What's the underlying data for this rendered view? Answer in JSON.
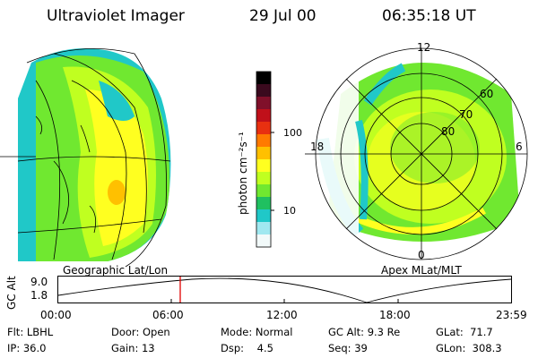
{
  "header": {
    "instrument": "Ultraviolet Imager",
    "date": "29 Jul 00",
    "time": "06:35:18 UT"
  },
  "colorbar": {
    "unit_label": "photon cm⁻²s⁻¹",
    "tick_labels": [
      "100",
      "10"
    ],
    "colors": [
      "#000000",
      "#3a0a1e",
      "#80102a",
      "#c0101a",
      "#e83010",
      "#ff7a00",
      "#ffc000",
      "#ffff20",
      "#c0ff20",
      "#70e830",
      "#20c060",
      "#20c8c8",
      "#a0e8f0",
      "#f2fafa"
    ]
  },
  "panels": {
    "left_caption": "Geographic Lat/Lon",
    "right_caption": "Apex MLat/MLT",
    "polar": {
      "mlt_labels": [
        "12",
        "18",
        "6",
        "0"
      ],
      "lat_labels": [
        "60",
        "70",
        "80"
      ]
    }
  },
  "altitude_plot": {
    "ylabel": "GC Alt",
    "y_ticks": [
      "9.0",
      "1.8"
    ],
    "x_ticks": [
      "00:00",
      "06:00",
      "12:00",
      "18:00",
      "23:59"
    ],
    "marker_color": "#e00000"
  },
  "info": {
    "rows": [
      [
        {
          "label": "Flt:",
          "value": "LBHL"
        },
        {
          "label": "Door:",
          "value": "Open"
        },
        {
          "label": "Mode:",
          "value": "Normal"
        },
        {
          "label": "GC Alt:",
          "value": "9.3 Re"
        },
        {
          "label": "GLat:",
          "value": "71.7"
        }
      ],
      [
        {
          "label": "IP:",
          "value": "36.0"
        },
        {
          "label": "Gain:",
          "value": "13"
        },
        {
          "label": "Dsp:",
          "value": "4.5"
        },
        {
          "label": "Seq:",
          "value": "39"
        },
        {
          "label": "GLon:",
          "value": "308.3"
        }
      ]
    ]
  }
}
